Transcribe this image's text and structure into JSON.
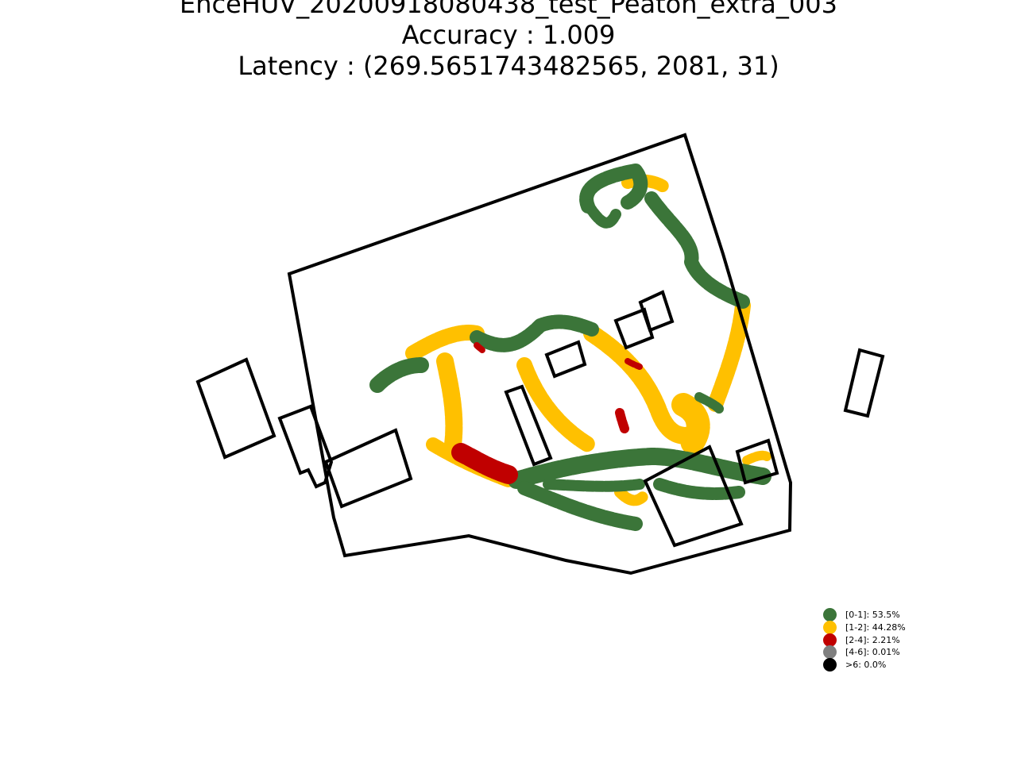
{
  "title": {
    "line1": "EnceHUV_20200918080438_test_Peaton_extra_003",
    "line2": "Accuracy : 1.009",
    "line3": "Latency : (269.5651743482565, 2081, 31)"
  },
  "legend": {
    "items": [
      {
        "label": "[0-1]: 53.5%",
        "color": "#3b7539"
      },
      {
        "label": "[1-2]: 44.28%",
        "color": "#ffc000"
      },
      {
        "label": "[2-4]: 2.21%",
        "color": "#c00000"
      },
      {
        "label": "[4-6]: 0.01%",
        "color": "#7f7f7f"
      },
      {
        "label": ">6: 0.0%",
        "color": "#000000"
      }
    ]
  },
  "map_legend_colors": {
    "boundary": "#000000",
    "err_0_1": "#3b7539",
    "err_1_2": "#ffc000",
    "err_2_4": "#c00000",
    "err_4_6": "#7f7f7f",
    "err_gt6": "#000000"
  }
}
